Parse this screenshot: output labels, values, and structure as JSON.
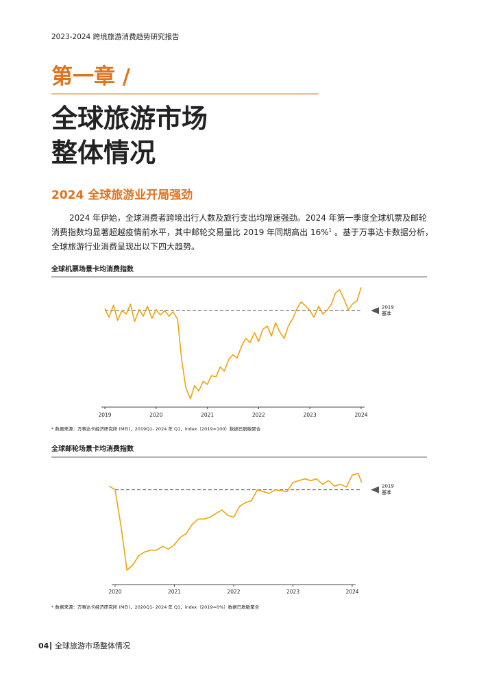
{
  "header": "2023-2024 跨境旅游消费趋势研究报告",
  "chapter": "第一章 /",
  "title_lines": [
    "全球旅游市场",
    "整体情况"
  ],
  "section_heading": "2024 全球旅游业开局强劲",
  "paragraph": {
    "lines": [
      {
        "text": "2024 年伊始，全球消费者跨境出行人数及旅行支出均增速强劲。2024 年第一季度全球机票及邮轮"
      },
      {
        "text": "消费指数均显著超越疫情前水平，其中邮轮交易量比 2019 年同期高出 16%",
        "sup": "1",
        "after": " 。基于万事达卡数据分析，"
      },
      {
        "text": "全球旅游行业消费呈现出以下四大趋势。"
      }
    ]
  },
  "charts": [
    {
      "title": "全球机票场景卡均消费指数",
      "source": "* 数据来源：万事达卡经济研究所 (MEI)，2019Q1- 2024 年 Q1，index（2019=100）数据已脱敏聚合",
      "chart_data": {
        "type": "line",
        "x": [
          2019,
          2019.08,
          2019.17,
          2019.25,
          2019.33,
          2019.42,
          2019.5,
          2019.58,
          2019.67,
          2019.75,
          2019.83,
          2019.92,
          2020,
          2020.08,
          2020.17,
          2020.25,
          2020.33,
          2020.42,
          2020.5,
          2020.58,
          2020.67,
          2020.75,
          2020.83,
          2020.92,
          2021,
          2021.08,
          2021.17,
          2021.25,
          2021.33,
          2021.42,
          2021.5,
          2021.58,
          2021.67,
          2021.75,
          2021.83,
          2021.92,
          2022,
          2022.08,
          2022.17,
          2022.25,
          2022.33,
          2022.42,
          2022.5,
          2022.58,
          2022.67,
          2022.75,
          2022.83,
          2022.92,
          2023,
          2023.08,
          2023.17,
          2023.25,
          2023.33,
          2023.42,
          2023.5,
          2023.58,
          2023.67,
          2023.75,
          2023.83,
          2023.92,
          2024
        ],
        "series": [
          {
            "color": "#f0a30a",
            "values": [
              102,
              94,
              105,
              91,
              100,
              97,
              106,
              90,
              101,
              95,
              104,
              93,
              101,
              96,
              100,
              95,
              99,
              92,
              55,
              30,
              20,
              32,
              27,
              36,
              33,
              41,
              40,
              49,
              45,
              56,
              60,
              57,
              68,
              75,
              71,
              80,
              72,
              83,
              86,
              77,
              89,
              80,
              75,
              86,
              93,
              102,
              108,
              104,
              100,
              94,
              104,
              97,
              100,
              106,
              116,
              119,
              110,
              101,
              106,
              109,
              121
            ]
          }
        ],
        "baseline": {
          "value": 100,
          "label_lines": [
            "2019",
            "基准"
          ]
        },
        "xlim": [
          2019,
          2024
        ],
        "xticks": [
          2019,
          2020,
          2021,
          2022,
          2023,
          2024
        ],
        "ylim": [
          15,
          130
        ]
      }
    },
    {
      "title": "全球邮轮场景卡均消费指数",
      "source": "* 数据来源：万事达卡经济研究所 (MEI)，2020Q1- 2024 年 Q1，index（2019=0%）数据已脱敏聚合",
      "chart_data": {
        "type": "line",
        "x": [
          2019.9,
          2020,
          2020.1,
          2020.2,
          2020.3,
          2020.4,
          2020.5,
          2020.6,
          2020.7,
          2020.8,
          2020.9,
          2021,
          2021.1,
          2021.2,
          2021.3,
          2021.4,
          2021.5,
          2021.6,
          2021.7,
          2021.8,
          2021.9,
          2022,
          2022.1,
          2022.2,
          2022.3,
          2022.4,
          2022.5,
          2022.6,
          2022.7,
          2022.8,
          2022.9,
          2023,
          2023.1,
          2023.2,
          2023.3,
          2023.4,
          2023.5,
          2023.6,
          2023.7,
          2023.8,
          2023.9,
          2024,
          2024.1,
          2024.16
        ],
        "series": [
          {
            "color": "#f0a30a",
            "values": [
              104,
              100,
              60,
              12,
              18,
              28,
              32,
              34,
              34,
              38,
              35,
              40,
              48,
              52,
              62,
              68,
              68,
              70,
              74,
              78,
              72,
              70,
              82,
              86,
              88,
              100,
              98,
              96,
              100,
              99,
              98,
              108,
              110,
              112,
              110,
              112,
              106,
              110,
              104,
              106,
              103,
              116,
              118,
              108
            ]
          }
        ],
        "baseline": {
          "value": 100,
          "label_lines": [
            "2019",
            "基准"
          ]
        },
        "xlim": [
          2020,
          2024
        ],
        "xticks": [
          2020,
          2021,
          2022,
          2023,
          2024
        ],
        "ylim": [
          0,
          120
        ]
      }
    }
  ],
  "footer": {
    "page": "04",
    "section": "全球旅游市场整体情况"
  }
}
